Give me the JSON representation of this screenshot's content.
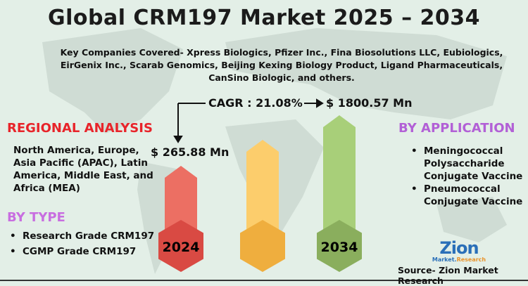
{
  "title": "Global CRM197 Market 2025 – 2034",
  "companies": "Key Companies Covered- Xpress Biologics, Pfizer Inc., Fina Biosolutions LLC, Eubiologics, EirGenix Inc., Scarab Genomics, Beijing Kexing Biology Product, Ligand Pharmaceuticals, CanSino Biologic, and others.",
  "cagr": "CAGR : 21.08%",
  "value_2024": "$ 265.88 Mn",
  "value_2034": "$ 1800.57 Mn",
  "years": {
    "start": "2024",
    "end": "2034"
  },
  "regional": {
    "heading": "REGIONAL ANALYSIS",
    "text": "North America, Europe, Asia Pacific (APAC), Latin America, Middle East, and Africa (MEA)"
  },
  "by_type": {
    "heading": "BY TYPE",
    "items": [
      "Research Grade CRM197",
      "CGMP Grade CRM197"
    ]
  },
  "by_application": {
    "heading": "BY APPLICATION",
    "items": [
      "Meningococcal Polysaccharide Conjugate Vaccine",
      "Pneumococcal Conjugate Vaccine"
    ]
  },
  "logo": {
    "name": "Zion",
    "sub_a": "Market.",
    "sub_b": "Research"
  },
  "source": "Source- Zion Market Research",
  "colors": {
    "background": "#e3efe7",
    "red_bar": "#ec6f63",
    "red_hex": "#d94a43",
    "yellow_bar": "#fccd6c",
    "yellow_hex": "#efae3e",
    "green_bar": "#a8cf79",
    "green_hex": "#8aae5d",
    "regional_heading": "#e8242a",
    "type_heading": "#c86ee0"
  }
}
